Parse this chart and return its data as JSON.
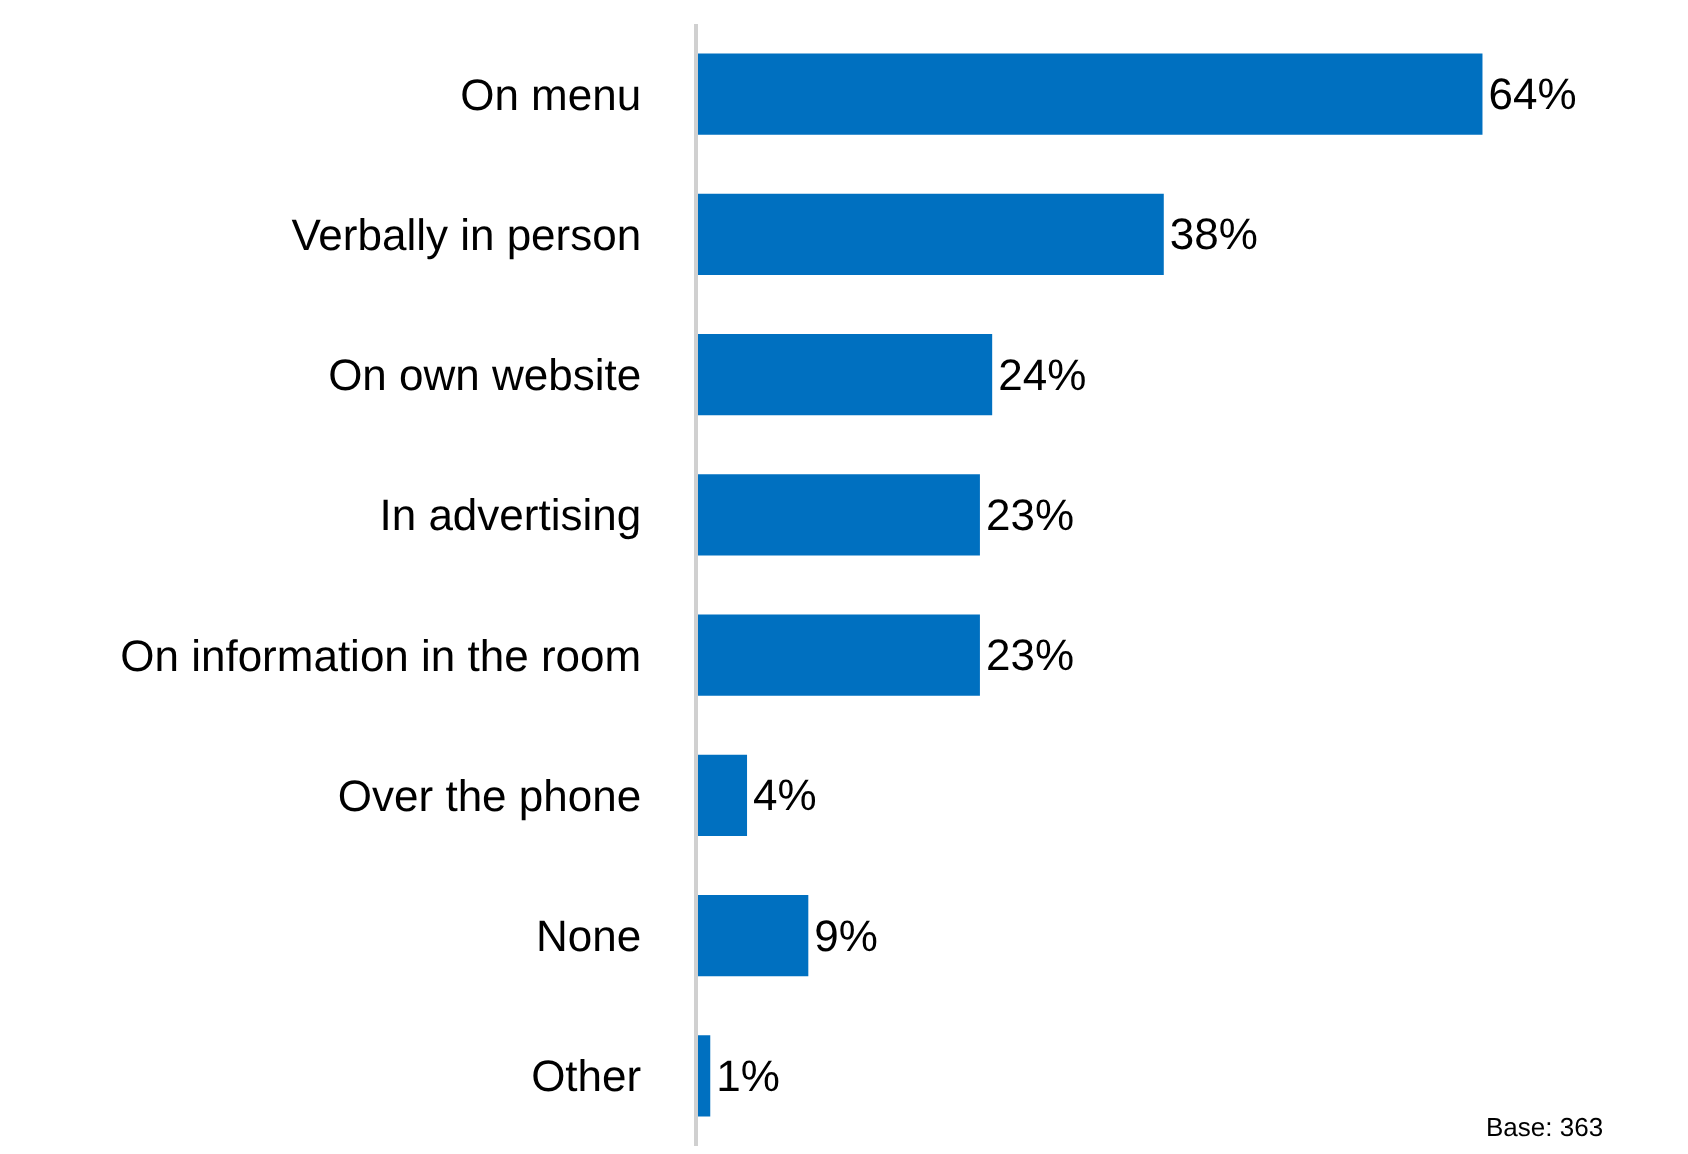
{
  "chart_data": {
    "type": "bar",
    "orientation": "horizontal",
    "categories": [
      "On menu",
      "Verbally in person",
      "On own website",
      "In advertising",
      "On information in the room",
      "Over the phone",
      "None",
      "Other"
    ],
    "values": [
      64,
      38,
      24,
      23,
      23,
      4,
      9,
      1
    ],
    "value_labels": [
      "64%",
      "38%",
      "24%",
      "23%",
      "23%",
      "4%",
      "9%",
      "1%"
    ],
    "color": "#0070c0",
    "annotations": [
      "Base: 363"
    ]
  }
}
